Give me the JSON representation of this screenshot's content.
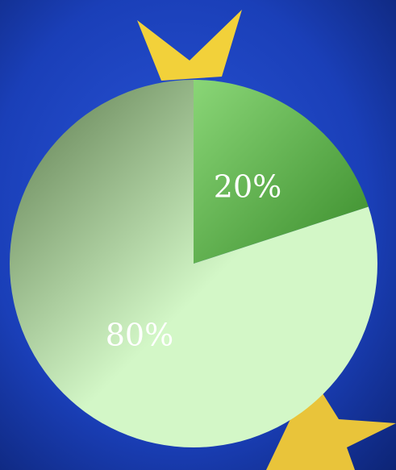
{
  "chart_data": {
    "type": "pie",
    "values": [
      20,
      80
    ],
    "value_labels": [
      "20%",
      "80%"
    ],
    "colors": [
      [
        "#8ad677",
        "#3a8c2b"
      ],
      [
        "#5c7a4d",
        "#d3f7c7"
      ]
    ]
  }
}
